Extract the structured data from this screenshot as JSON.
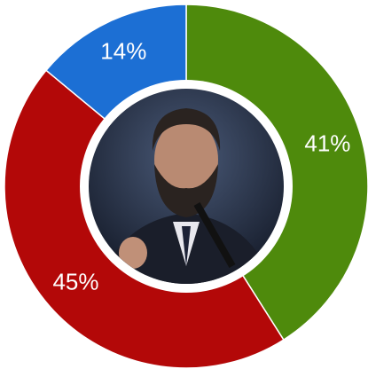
{
  "chart_data": {
    "type": "donut",
    "values": [
      41,
      45,
      14
    ],
    "value_labels": [
      "41%",
      "45%",
      "14%"
    ],
    "colors": [
      "#4e8a0c",
      "#b30808",
      "#1c6fd4"
    ]
  }
}
